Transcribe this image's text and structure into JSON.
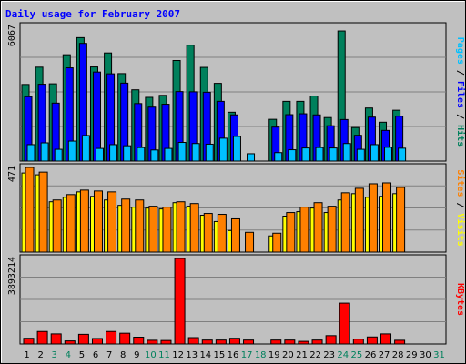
{
  "colors": {
    "hits": "#00805c",
    "files": "#0000ff",
    "pages": "#00c0ff",
    "visits": "#ffff00",
    "sites": "#ff8000",
    "kbytes": "#ff0000",
    "title": "#0000ff",
    "panel_bg": "#c0c0c0",
    "weekend_day": "#00805c",
    "weekday": "#000000"
  },
  "chart_data": {
    "title": "Daily usage for February 2007",
    "days": [
      "1",
      "2",
      "3",
      "4",
      "5",
      "6",
      "7",
      "8",
      "9",
      "10",
      "11",
      "12",
      "13",
      "14",
      "15",
      "16",
      "17",
      "18",
      "19",
      "20",
      "21",
      "22",
      "23",
      "24",
      "25",
      "26",
      "27",
      "28",
      "29",
      "30",
      "31"
    ],
    "weekend_days": [
      "3",
      "4",
      "10",
      "11",
      "17",
      "18",
      "24",
      "25",
      "31"
    ],
    "panels": [
      {
        "type": "bar",
        "name": "hits-files-pages",
        "ymax_label": "6067",
        "ymax": 6067,
        "series_labels": [
          "Pages",
          "Files",
          "Hits"
        ],
        "separator": " / ",
        "series": [
          {
            "name": "Hits",
            "values": [
              3450,
              4230,
              3480,
              4790,
              5560,
              4240,
              4870,
              3940,
              3210,
              2870,
              2960,
              4530,
              5220,
              4220,
              3500,
              2200,
              0,
              0,
              1880,
              2690,
              2690,
              2930,
              1960,
              5860,
              1510,
              2390,
              1750,
              2290,
              0,
              0,
              0
            ]
          },
          {
            "name": "Files",
            "values": [
              2900,
              3460,
              2610,
              4200,
              5300,
              4010,
              3930,
              3510,
              2590,
              2430,
              2560,
              3130,
              3120,
              3100,
              2690,
              2080,
              0,
              0,
              1530,
              2090,
              2130,
              2080,
              1590,
              1870,
              1160,
              1980,
              1380,
              2020,
              0,
              0,
              0
            ]
          },
          {
            "name": "Pages",
            "values": [
              740,
              820,
              530,
              900,
              1150,
              570,
              740,
              690,
              610,
              500,
              570,
              840,
              790,
              760,
              1030,
              1110,
              330,
              0,
              380,
              510,
              590,
              610,
              590,
              790,
              530,
              740,
              620,
              580,
              0,
              0,
              0
            ]
          }
        ]
      },
      {
        "type": "bar",
        "name": "visits-sites",
        "ymax_label": "471",
        "ymax": 471,
        "series_labels": [
          "Sites",
          "Visits"
        ],
        "separator": " / ",
        "series": [
          {
            "name": "Visits",
            "values": [
              440,
              430,
              280,
              305,
              335,
              310,
              290,
              260,
              250,
              245,
              240,
              275,
              255,
              205,
              170,
              120,
              0,
              0,
              90,
              200,
              225,
              245,
              220,
              290,
              325,
              305,
              310,
              325,
              0,
              0,
              0
            ]
          },
          {
            "name": "Sites",
            "values": [
              471,
              445,
              290,
              320,
              345,
              340,
              335,
              295,
              290,
              255,
              250,
              280,
              270,
              215,
              210,
              185,
              110,
              0,
              105,
              220,
              250,
              275,
              255,
              330,
              355,
              380,
              385,
              360,
              0,
              0,
              0
            ]
          }
        ]
      },
      {
        "type": "bar",
        "name": "kbytes",
        "ymax_label": "3893214",
        "ymax": 3893214,
        "series_labels": [
          "KBytes"
        ],
        "separator": "",
        "series": [
          {
            "name": "KBytes",
            "values": [
              260000,
              570000,
              460000,
              140000,
              440000,
              250000,
              570000,
              490000,
              310000,
              170000,
              160000,
              3893214,
              290000,
              180000,
              180000,
              260000,
              180000,
              0,
              180000,
              180000,
              120000,
              180000,
              380000,
              1860000,
              220000,
              320000,
              460000,
              170000,
              0,
              0,
              0
            ]
          }
        ]
      }
    ]
  }
}
